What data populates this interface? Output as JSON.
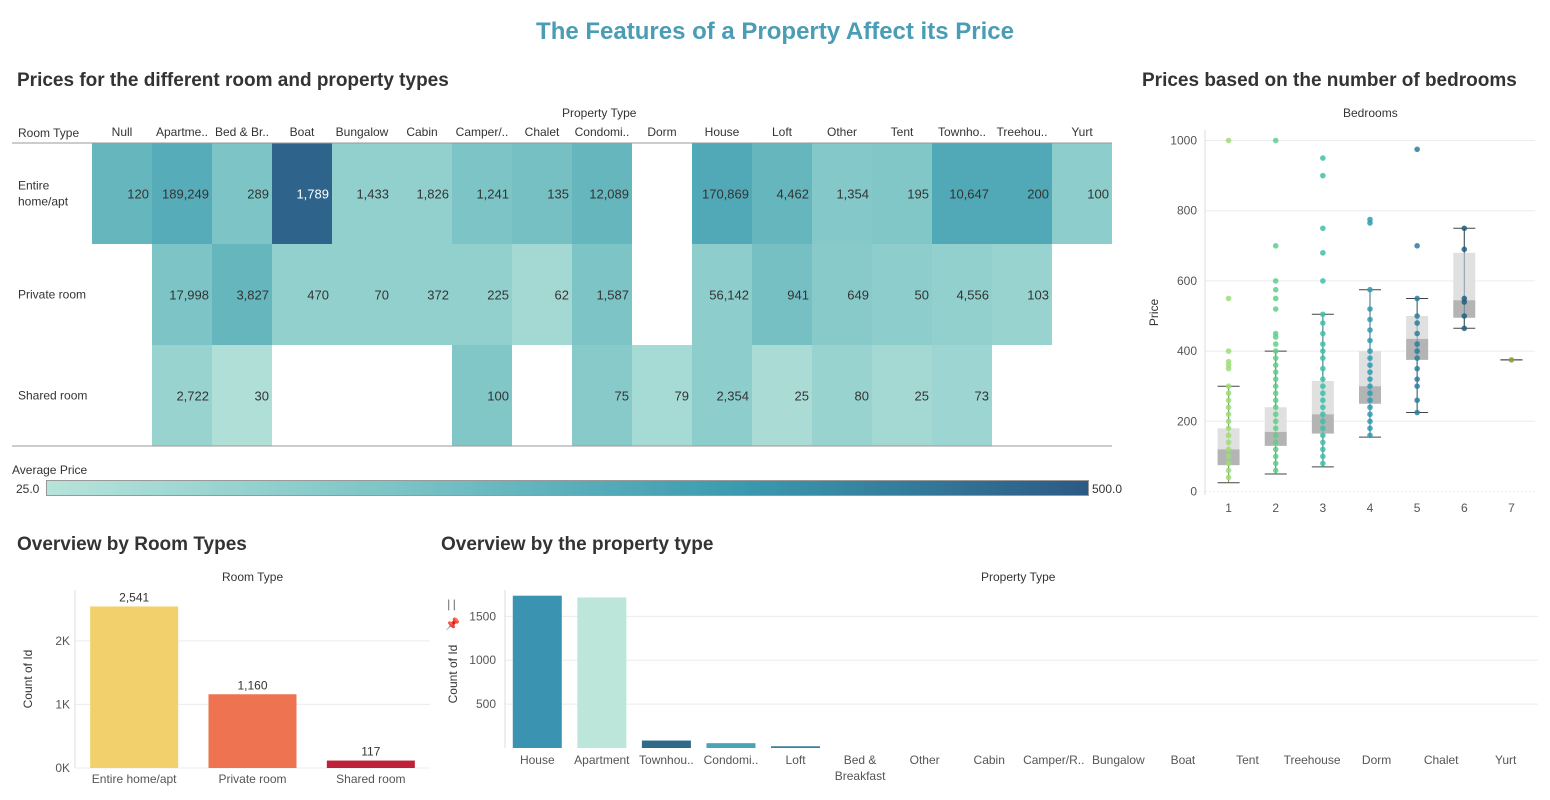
{
  "title": "The Features of a Property Affect its Price",
  "colors": {
    "title": "#4a9db5",
    "ramp_low": "#b7e3da",
    "ramp_high": "#2c5a85",
    "boxplot_gray": "#cccccc"
  },
  "heatmap": {
    "section_title": "Prices for the different room and property types",
    "column_header": "Property Type",
    "row_header": "Room Type",
    "legend_title": "Average Price",
    "legend_min": "25.0",
    "legend_max": "500.0",
    "chart_data": {
      "type": "heatmap",
      "columns": [
        "Null",
        "Apartme..",
        "Bed & Br..",
        "Boat",
        "Bungalow",
        "Cabin",
        "Camper/..",
        "Chalet",
        "Condomi..",
        "Dorm",
        "House",
        "Loft",
        "Other",
        "Tent",
        "Townho..",
        "Treehou..",
        "Yurt"
      ],
      "rows": [
        "Entire home/apt",
        "Private room",
        "Shared room"
      ],
      "labels": [
        [
          "120",
          "189,249",
          "289",
          "1,789",
          "1,433",
          "1,826",
          "1,241",
          "135",
          "12,089",
          "",
          "170,869",
          "4,462",
          "1,354",
          "195",
          "10,647",
          "200",
          "100"
        ],
        [
          "",
          "17,998",
          "3,827",
          "470",
          "70",
          "372",
          "225",
          "62",
          "1,587",
          "",
          "56,142",
          "941",
          "649",
          "50",
          "4,556",
          "103",
          ""
        ],
        [
          "",
          "2,722",
          "30",
          "",
          "",
          "",
          "100",
          "",
          "75",
          "79",
          "2,354",
          "25",
          "80",
          "25",
          "73",
          "",
          ""
        ]
      ],
      "shade": [
        [
          0.45,
          0.52,
          0.35,
          0.95,
          0.22,
          0.22,
          0.35,
          0.38,
          0.45,
          null,
          0.55,
          0.45,
          0.3,
          0.32,
          0.55,
          0.55,
          0.25
        ],
        [
          null,
          0.35,
          0.45,
          0.22,
          0.22,
          0.22,
          0.22,
          0.12,
          0.35,
          null,
          0.25,
          0.38,
          0.28,
          0.25,
          0.22,
          0.18,
          null
        ],
        [
          null,
          0.18,
          0.05,
          null,
          null,
          null,
          0.32,
          null,
          0.28,
          0.1,
          0.25,
          0.08,
          0.18,
          0.12,
          0.16,
          null,
          null
        ]
      ]
    }
  },
  "bedrooms": {
    "section_title": "Prices based on the number of bedrooms",
    "column_header": "Bedrooms",
    "chart_data": {
      "type": "boxplot",
      "x_label": "Bedrooms",
      "ylabel": "Price",
      "categories": [
        "1",
        "2",
        "3",
        "4",
        "5",
        "6",
        "7"
      ],
      "y_ticks": [
        "0",
        "200",
        "400",
        "600",
        "800",
        "1000"
      ],
      "ylim": [
        -10,
        1030
      ],
      "boxes": [
        {
          "min": 25,
          "q1": 75,
          "median": 120,
          "q3": 180,
          "max": 300
        },
        {
          "min": 50,
          "q1": 130,
          "median": 170,
          "q3": 240,
          "max": 400
        },
        {
          "min": 70,
          "q1": 165,
          "median": 220,
          "q3": 315,
          "max": 505
        },
        {
          "min": 155,
          "q1": 250,
          "median": 300,
          "q3": 400,
          "max": 575
        },
        {
          "min": 225,
          "q1": 375,
          "median": 435,
          "q3": 500,
          "max": 550
        },
        {
          "min": 465,
          "q1": 495,
          "median": 545,
          "q3": 680,
          "max": 750
        },
        {
          "min": 375,
          "q1": 375,
          "median": 375,
          "q3": 375,
          "max": 375
        }
      ],
      "outliers": [
        [
          1000,
          550,
          400,
          370,
          360,
          350,
          300,
          280,
          260,
          240,
          220,
          200,
          180,
          160,
          140,
          120,
          100,
          80,
          60,
          40
        ],
        [
          1000,
          700,
          600,
          575,
          550,
          520,
          450,
          440,
          420,
          400,
          380,
          360,
          340,
          320,
          300,
          280,
          260,
          240,
          220,
          200,
          180,
          160,
          140,
          120,
          100,
          80,
          60
        ],
        [
          950,
          900,
          750,
          680,
          600,
          505,
          480,
          450,
          420,
          400,
          380,
          350,
          320,
          300,
          280,
          260,
          240,
          220,
          200,
          180,
          160,
          140,
          120,
          100,
          80
        ],
        [
          775,
          765,
          575,
          520,
          490,
          460,
          430,
          400,
          380,
          360,
          340,
          320,
          300,
          280,
          260,
          240,
          220,
          200,
          180,
          160
        ],
        [
          975,
          700,
          550,
          500,
          480,
          450,
          420,
          400,
          380,
          350,
          320,
          300,
          260,
          225
        ],
        [
          750,
          690,
          550,
          540,
          500,
          465
        ],
        [
          375
        ]
      ],
      "point_colors": [
        "#9ddc7a",
        "#5fcf8a",
        "#3fbfa8",
        "#2f9bb0",
        "#2a7f9e",
        "#245f7e",
        "#8aa030"
      ]
    }
  },
  "room_overview": {
    "section_title": "Overview by Room Types",
    "column_header": "Room Type",
    "chart_data": {
      "type": "bar",
      "categories": [
        "Entire home/apt",
        "Private room",
        "Shared room"
      ],
      "values": [
        2541,
        1160,
        117
      ],
      "value_labels": [
        "2,541",
        "1,160",
        "117"
      ],
      "colors": [
        "#f2d06b",
        "#ee7350",
        "#c0213a"
      ],
      "ylabel": "Count of Id",
      "y_ticks": [
        "0K",
        "1K",
        "2K"
      ],
      "ylim": [
        0,
        2800
      ]
    }
  },
  "property_overview": {
    "section_title": "Overview by the property type",
    "column_header": "Property Type",
    "chart_data": {
      "type": "bar",
      "categories": [
        "House",
        "Apartment",
        "Townhou..",
        "Condomi..",
        "Loft",
        "Bed & Breakfast",
        "Other",
        "Cabin",
        "Camper/R..",
        "Bungalow",
        "Boat",
        "Tent",
        "Treehouse",
        "Dorm",
        "Chalet",
        "Yurt"
      ],
      "values": [
        1735,
        1715,
        85,
        55,
        20,
        0,
        0,
        0,
        0,
        0,
        0,
        0,
        0,
        0,
        0,
        0
      ],
      "colors": [
        "#3a93b0",
        "#bde6da",
        "#2f6a8a",
        "#4aa4b5",
        "#3a7fa0",
        "#cccccc",
        "#cccccc",
        "#cccccc",
        "#cccccc",
        "#cccccc",
        "#cccccc",
        "#cccccc",
        "#cccccc",
        "#cccccc",
        "#cccccc",
        "#cccccc"
      ],
      "ylabel": "Count of Id",
      "y_ticks": [
        "500",
        "1000",
        "1500"
      ],
      "ylim": [
        0,
        1800
      ]
    }
  }
}
